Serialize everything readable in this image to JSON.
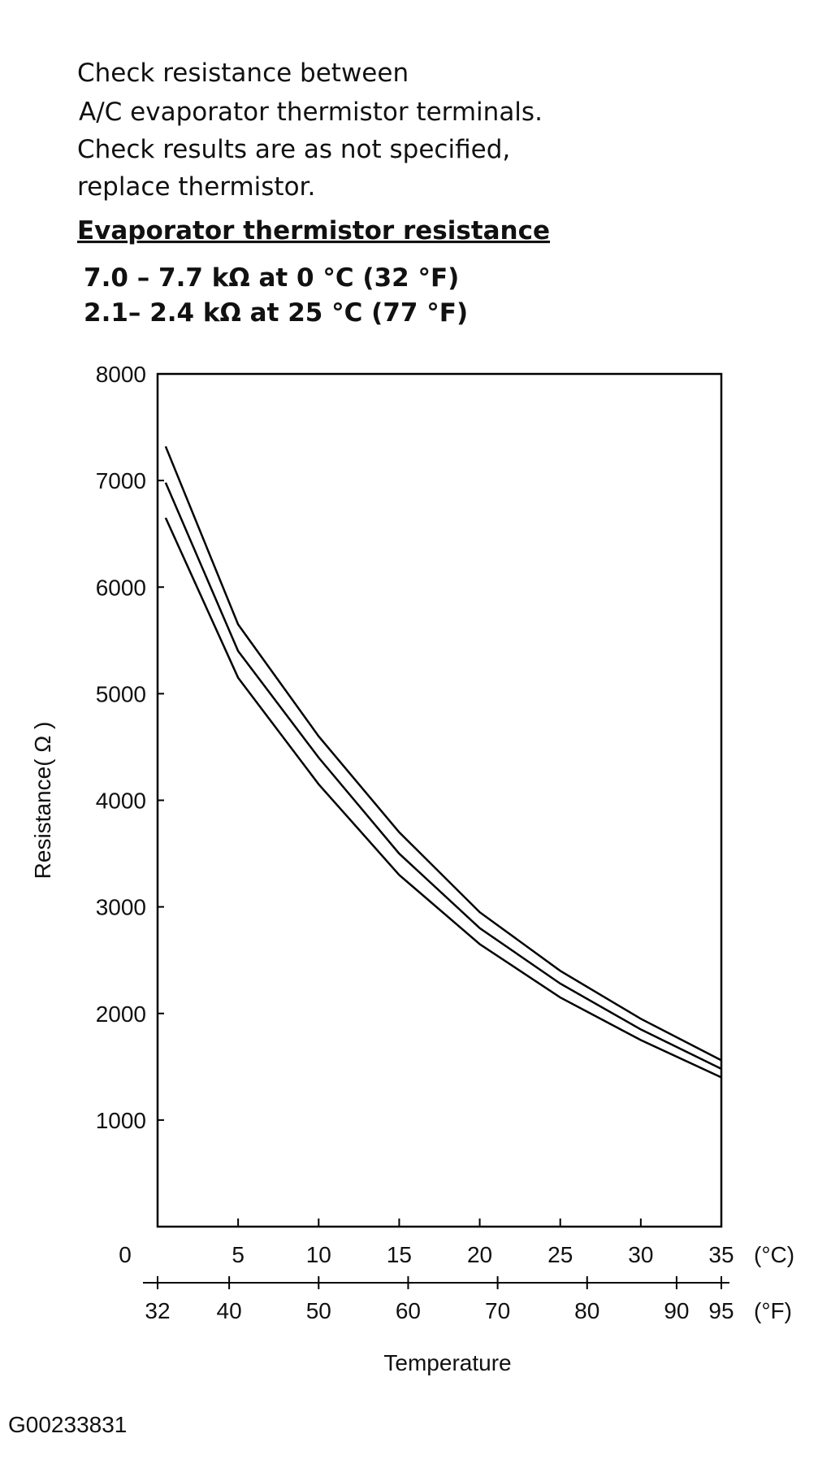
{
  "instructions": [
    "Check resistance between",
    "A/C evaporator thermistor terminals.",
    "Check results are as not specified,",
    "replace thermistor."
  ],
  "heading": "Evaporator thermistor resistance",
  "specs": [
    "7.0 – 7.7 kΩ at 0 °C (32 °F)",
    "2.1– 2.4 kΩ at 25 °C (77 °F)"
  ],
  "footer": "G00233831",
  "chart_data": {
    "type": "line",
    "y_label": "Resistance( Ω )",
    "x_label": "Temperature",
    "x_unit": "(°C)",
    "x2_unit": "(°F)",
    "x": [
      0.5,
      5,
      10,
      15,
      20,
      25,
      30,
      35
    ],
    "series": [
      {
        "color": "#000000",
        "values": [
          7320,
          5650,
          4600,
          3700,
          2950,
          2400,
          1950,
          1560
        ]
      },
      {
        "color": "#000000",
        "values": [
          6980,
          5400,
          4400,
          3500,
          2800,
          2280,
          1850,
          1480
        ]
      },
      {
        "color": "#000000",
        "values": [
          6650,
          5150,
          4150,
          3300,
          2650,
          2150,
          1750,
          1400
        ]
      }
    ],
    "xlim": [
      0,
      35
    ],
    "xticks": [
      0,
      5,
      10,
      15,
      20,
      25,
      30,
      35
    ],
    "x2lim": [
      32,
      95
    ],
    "x2ticks": [
      32,
      40,
      50,
      60,
      70,
      80,
      90,
      95
    ],
    "ylim": [
      0,
      8000
    ],
    "yticks": [
      1000,
      2000,
      3000,
      4000,
      5000,
      6000,
      7000,
      8000
    ]
  }
}
